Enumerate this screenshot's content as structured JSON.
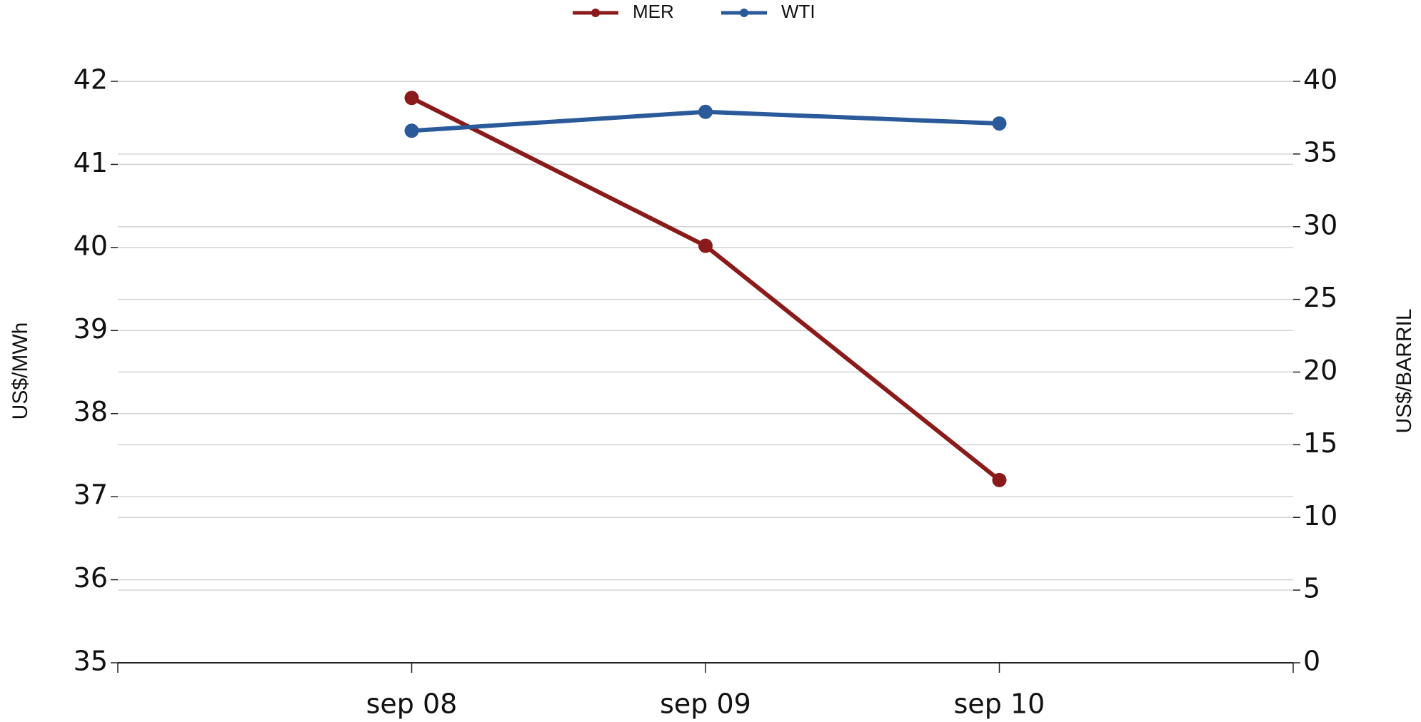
{
  "chart_data": {
    "type": "line",
    "categories": [
      null,
      "sep 08",
      "sep 09",
      "sep 10",
      null
    ],
    "series": [
      {
        "name": "MER",
        "color": "#8b1a1a",
        "values": [
          null,
          41.8,
          40.02,
          37.2,
          null
        ]
      },
      {
        "name": "WTI",
        "color": "#2a5a9a",
        "axis": "y2",
        "values": [
          null,
          36.6,
          37.9,
          37.1,
          null
        ]
      }
    ],
    "y_label": "US$/MWh",
    "y2_label": "US$/BARRIL",
    "ylim": [
      35,
      42
    ],
    "yticks": [
      35,
      36,
      37,
      38,
      39,
      40,
      41,
      42
    ],
    "y2lim": [
      0,
      40
    ],
    "y2ticks": [
      0,
      5,
      10,
      15,
      20,
      25,
      30,
      35,
      40
    ],
    "grid": true,
    "legend": "top"
  }
}
